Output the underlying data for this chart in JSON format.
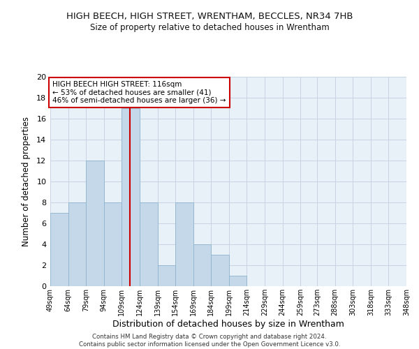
{
  "title": "HIGH BEECH, HIGH STREET, WRENTHAM, BECCLES, NR34 7HB",
  "subtitle": "Size of property relative to detached houses in Wrentham",
  "xlabel": "Distribution of detached houses by size in Wrentham",
  "ylabel": "Number of detached properties",
  "bin_edges": [
    49,
    64,
    79,
    94,
    109,
    124,
    139,
    154,
    169,
    184,
    199,
    214,
    229,
    244,
    259,
    273,
    288,
    303,
    318,
    333,
    348
  ],
  "bar_heights": [
    7,
    8,
    12,
    8,
    17,
    8,
    2,
    8,
    4,
    3,
    1,
    0,
    0,
    0,
    0,
    0,
    0,
    0,
    0,
    0
  ],
  "bar_color": "#c5d8ea",
  "bar_edgecolor": "#8eb4cc",
  "vline_x": 116,
  "vline_color": "#cc0000",
  "ylim": [
    0,
    20
  ],
  "yticks": [
    0,
    2,
    4,
    6,
    8,
    10,
    12,
    14,
    16,
    18,
    20
  ],
  "annotation_text": "HIGH BEECH HIGH STREET: 116sqm\n← 53% of detached houses are smaller (41)\n46% of semi-detached houses are larger (36) →",
  "annotation_box_facecolor": "#ffffff",
  "annotation_box_edgecolor": "#cc0000",
  "footer_line1": "Contains HM Land Registry data © Crown copyright and database right 2024.",
  "footer_line2": "Contains public sector information licensed under the Open Government Licence v3.0.",
  "tick_labels": [
    "49sqm",
    "64sqm",
    "79sqm",
    "94sqm",
    "109sqm",
    "124sqm",
    "139sqm",
    "154sqm",
    "169sqm",
    "184sqm",
    "199sqm",
    "214sqm",
    "229sqm",
    "244sqm",
    "259sqm",
    "273sqm",
    "288sqm",
    "303sqm",
    "318sqm",
    "333sqm",
    "348sqm"
  ],
  "bg_color": "#e8f0f8",
  "title_fontsize": 9.5,
  "subtitle_fontsize": 8.5
}
